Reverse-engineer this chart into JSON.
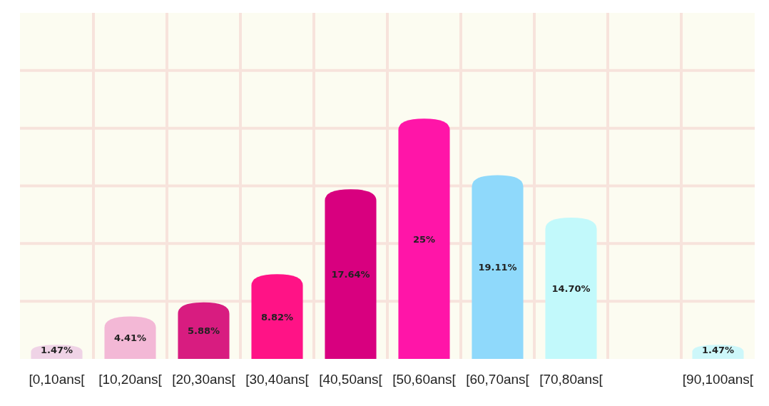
{
  "chart_data": {
    "type": "bar",
    "categories": [
      "[0,10ans[",
      "[10,20ans[",
      "[20,30ans[",
      "[30,40ans[",
      "[40,50ans[",
      "[50,60ans[",
      "[60,70ans[",
      "[70,80ans[",
      null,
      "[90,100ans["
    ],
    "values": [
      1.47,
      4.41,
      5.88,
      8.82,
      17.64,
      25,
      19.11,
      14.7,
      null,
      1.47
    ],
    "value_labels": [
      "1.47%",
      "4.41%",
      "5.88%",
      "8.82%",
      "17.64%",
      "25%",
      "19.11%",
      "14.70%",
      null,
      "1.47%"
    ],
    "colors": [
      "#efd3e6",
      "#f3b8d6",
      "#d81c80",
      "#ff1386",
      "#d8007f",
      "#ff15a8",
      "#8fd9fb",
      "#c2f9fb",
      null,
      "#cdf7fa"
    ],
    "ylim": [
      0,
      36
    ],
    "yticks": [
      {
        "value": 6,
        "label": null
      },
      {
        "value": 12,
        "label": null
      },
      {
        "value": 18,
        "label": null
      },
      {
        "value": 24,
        "label": null
      },
      {
        "value": 30,
        "label": null
      }
    ],
    "tick_labels": "x",
    "grid": true
  }
}
